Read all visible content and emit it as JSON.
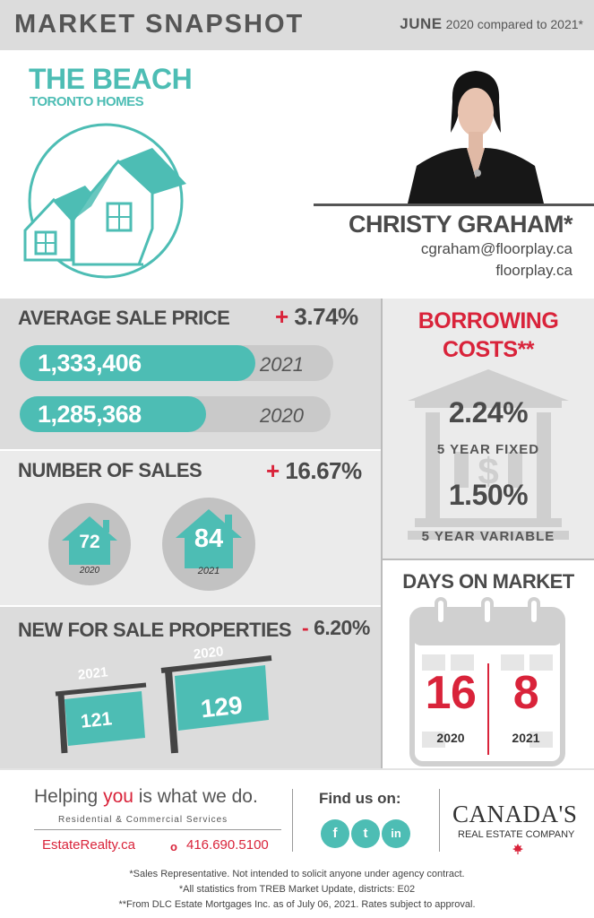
{
  "header": {
    "title": "MARKET SNAPSHOT",
    "month": "JUNE",
    "comparison": "2020 compared to 2021*"
  },
  "area": {
    "name": "THE BEACH",
    "subtitle": "TORONTO HOMES"
  },
  "agent": {
    "name": "CHRISTY GRAHAM*",
    "email": "cgraham@floorplay.ca",
    "website": "floorplay.ca"
  },
  "average_sale_price": {
    "label": "AVERAGE SALE PRICE",
    "sign": "+",
    "change": "3.74%",
    "rows": [
      {
        "value": "1,333,406",
        "year": "2021",
        "fill": 0.78
      },
      {
        "value": "1,285,368",
        "year": "2020",
        "fill": 0.61
      }
    ]
  },
  "number_of_sales": {
    "label": "NUMBER OF SALES",
    "sign": "+",
    "change": "16.67%",
    "items": [
      {
        "value": "72",
        "year": "2020"
      },
      {
        "value": "84",
        "year": "2021"
      }
    ]
  },
  "new_for_sale": {
    "label": "NEW FOR SALE PROPERTIES",
    "sign": "-",
    "change": "6.20%",
    "signs": [
      {
        "year": "2021",
        "value": "121"
      },
      {
        "year": "2020",
        "value": "129"
      }
    ]
  },
  "borrowing": {
    "title_line1": "BORROWING",
    "title_line2": "COSTS**",
    "fixed_rate": "2.24%",
    "fixed_label": "5 YEAR FIXED",
    "variable_rate": "1.50%",
    "variable_label": "5 YEAR VARIABLE"
  },
  "days_on_market": {
    "label": "DAYS ON MARKET",
    "values": [
      {
        "value": "16",
        "year": "2020"
      },
      {
        "value": "8",
        "year": "2021"
      }
    ]
  },
  "footer": {
    "tagline_pre": "Helping ",
    "tagline_you": "you",
    "tagline_post": " is what we do.",
    "services": "Residential & Commercial Services",
    "site": "EstateRealty.ca",
    "phone": "416.690.5100",
    "find_us": "Find us on:",
    "social": [
      "f",
      "t",
      "in"
    ],
    "brand_line1": "CANADA'S",
    "brand_line2": "REAL ESTATE COMPANY"
  },
  "notes": [
    "*Sales Representative. Not intended to solicit anyone under agency contract.",
    "*All statistics from TREB Market Update, districts: E02",
    "**From DLC Estate Mortgages Inc. as of July 06, 2021. Rates subject to approval."
  ],
  "colors": {
    "accent": "#4dbdb4",
    "red": "#d9233a",
    "panel_gray": "#dcdcdc",
    "panel_light": "#ebebeb",
    "text": "#4a4a4a"
  }
}
